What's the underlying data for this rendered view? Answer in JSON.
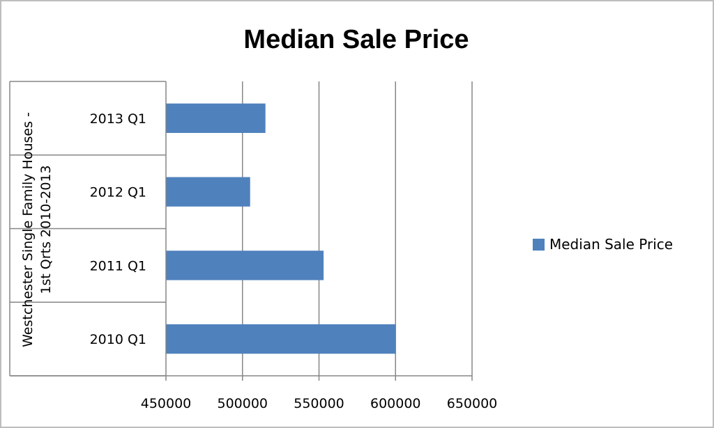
{
  "chart_data": {
    "type": "bar",
    "orientation": "horizontal",
    "title": "Median Sale Price",
    "ylabel_lines": [
      "Westchester Single Family Houses -",
      "1st Qrts 2010-2013"
    ],
    "xlabel": "",
    "categories": [
      "2010 Q1",
      "2011 Q1",
      "2012 Q1",
      "2013 Q1"
    ],
    "series": [
      {
        "name": "Median Sale Price",
        "values": [
          600000,
          553000,
          505000,
          515000
        ]
      }
    ],
    "xlim": [
      450000,
      650000
    ],
    "xticks": [
      450000,
      500000,
      550000,
      600000,
      650000
    ],
    "xtick_labels": [
      "450000",
      "500000",
      "550000",
      "600000",
      "650000"
    ],
    "grid": "vertical major gridlines",
    "legend_position": "right",
    "colors": {
      "bar": "#4f81bd",
      "gridline": "#868686",
      "axis": "#868686"
    }
  }
}
